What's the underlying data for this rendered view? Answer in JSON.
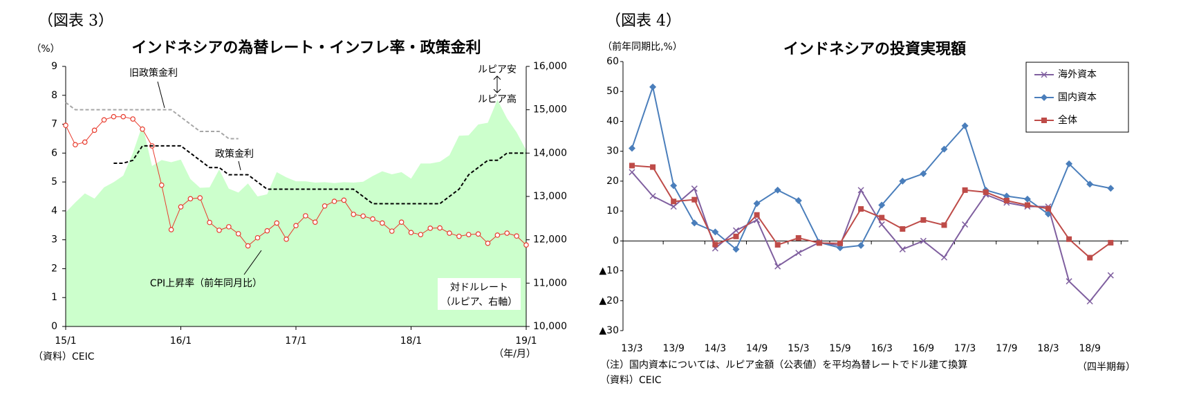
{
  "chart_data": [
    {
      "type": "line",
      "label": "（図表 3）",
      "title": "インドネシアの為替レート・インフレ率・政策金利",
      "y_label": "（%）",
      "x_label": "（年/月）",
      "source": "（資料）CEIC",
      "annotations": [
        "ルピア安",
        "ルピア高"
      ],
      "categories": [
        "15/1",
        null,
        null,
        null,
        null,
        null,
        null,
        null,
        null,
        null,
        null,
        null,
        "16/1",
        null,
        null,
        null,
        null,
        null,
        null,
        null,
        null,
        null,
        null,
        null,
        "17/1",
        null,
        null,
        null,
        null,
        null,
        null,
        null,
        null,
        null,
        null,
        null,
        "18/1",
        null,
        null,
        null,
        null,
        null,
        null,
        null,
        null,
        null,
        null,
        null,
        "19/1"
      ],
      "ylim": [
        0,
        9
      ],
      "yticks": [
        0,
        1,
        2,
        3,
        4,
        5,
        6,
        7,
        8,
        9
      ],
      "y2lim": [
        10000,
        16000
      ],
      "y2ticks": [
        {
          "value": 10000,
          "label": "10,000"
        },
        {
          "value": 11000,
          "label": "11,000"
        },
        {
          "value": 12000,
          "label": "12,000"
        },
        {
          "value": 13000,
          "label": "13,000"
        },
        {
          "value": 14000,
          "label": "14,000"
        },
        {
          "value": 15000,
          "label": "15,000"
        },
        {
          "value": 16000,
          "label": "16,000"
        }
      ],
      "series": [
        {
          "name": "CPI上昇率（前年同月比）",
          "color": "#e8392b",
          "marker": "circle",
          "values": [
            6.96,
            6.29,
            6.38,
            6.79,
            7.15,
            7.26,
            7.26,
            7.18,
            6.83,
            6.25,
            4.89,
            3.35,
            4.14,
            4.42,
            4.45,
            3.6,
            3.33,
            3.45,
            3.21,
            2.79,
            3.07,
            3.31,
            3.58,
            3.02,
            3.49,
            3.83,
            3.61,
            4.17,
            4.33,
            4.37,
            3.88,
            3.82,
            3.72,
            3.58,
            3.3,
            3.61,
            3.25,
            3.18,
            3.4,
            3.41,
            3.23,
            3.12,
            3.18,
            3.2,
            2.88,
            3.16,
            3.23,
            3.13,
            2.82
          ]
        },
        {
          "name": "旧政策金利",
          "color": "#a6a6a6",
          "dashed": true,
          "values": [
            7.75,
            7.5,
            7.5,
            7.5,
            7.5,
            7.5,
            7.5,
            7.5,
            7.5,
            7.5,
            7.5,
            7.5,
            7.25,
            7.0,
            6.75,
            6.75,
            6.75,
            6.5,
            6.5,
            null,
            null,
            null,
            null,
            null,
            null,
            null,
            null,
            null,
            null,
            null,
            null,
            null,
            null,
            null,
            null,
            null,
            null,
            null,
            null,
            null,
            null,
            null,
            null,
            null,
            null,
            null,
            null,
            null,
            null
          ]
        },
        {
          "name": "政策金利",
          "color": "#000000",
          "dashed": true,
          "values": [
            null,
            null,
            null,
            null,
            null,
            5.65,
            5.65,
            5.75,
            6.25,
            6.25,
            6.25,
            6.25,
            6.25,
            6.0,
            5.75,
            5.5,
            5.5,
            5.25,
            5.25,
            5.25,
            5.0,
            4.75,
            4.75,
            4.75,
            4.75,
            4.75,
            4.75,
            4.75,
            4.75,
            4.75,
            4.75,
            4.5,
            4.25,
            4.25,
            4.25,
            4.25,
            4.25,
            4.25,
            4.25,
            4.25,
            4.5,
            4.75,
            5.25,
            5.5,
            5.75,
            5.75,
            6.0,
            6.0,
            6.0
          ]
        },
        {
          "name": "対ドルレート",
          "sublabel": "（ルピア、右軸）",
          "color": "#ccffcc",
          "area": true,
          "axis": "y2",
          "values": [
            12630,
            12860,
            13070,
            12950,
            13210,
            13330,
            13480,
            14000,
            14650,
            13700,
            13840,
            13790,
            13850,
            13400,
            13200,
            13210,
            13620,
            13180,
            13090,
            13300,
            13000,
            13050,
            13560,
            13440,
            13350,
            13350,
            13320,
            13330,
            13310,
            13330,
            13320,
            13340,
            13470,
            13580,
            13510,
            13560,
            13410,
            13760,
            13760,
            13800,
            13950,
            14400,
            14410,
            14660,
            14700,
            15230,
            14800,
            14480,
            14070
          ]
        }
      ]
    },
    {
      "type": "line",
      "label": "（図表 4）",
      "title": "インドネシアの投資実現額",
      "y_label": "（前年同期比,%）",
      "x_label": "（四半期毎）",
      "note": "（注）国内資本については、ルピア金額（公表値）を平均為替レートでドル建て換算",
      "source": "（資料）CEIC",
      "legend": "upper right",
      "negative_label_color": "#ff0000",
      "categories": [
        "13/3",
        null,
        "13/9",
        null,
        "14/3",
        null,
        "14/9",
        null,
        "15/3",
        null,
        "15/9",
        null,
        "16/3",
        null,
        "16/9",
        null,
        "17/3",
        null,
        "17/9",
        null,
        "18/3",
        null,
        "18/9",
        null
      ],
      "ylim": [
        -30,
        60
      ],
      "yticks": [
        {
          "value": -30,
          "label": "▲30"
        },
        {
          "value": -20,
          "label": "▲20"
        },
        {
          "value": -10,
          "label": "▲10"
        },
        0,
        10,
        20,
        30,
        40,
        50,
        60
      ],
      "series": [
        {
          "name": "海外資本",
          "color": "#7f5f9f",
          "marker": "x",
          "values": [
            23,
            15,
            11.5,
            17.5,
            -2.5,
            3.5,
            7,
            -8.5,
            -4,
            -0.5,
            -1.5,
            17,
            5.5,
            -2.8,
            0,
            -5.5,
            5.5,
            15.5,
            12.8,
            11.5,
            11.5,
            -13.5,
            -20.2,
            -11.5
          ]
        },
        {
          "name": "国内資本",
          "color": "#4a7ebb",
          "marker": "diamond",
          "values": [
            31,
            51.5,
            18.5,
            6,
            3,
            -2.8,
            12.5,
            17,
            13.5,
            -0.5,
            -2.3,
            -1.5,
            12,
            20,
            22.5,
            30.7,
            38.5,
            17,
            15,
            14,
            9,
            25.8,
            19,
            17.6
          ]
        },
        {
          "name": "全体",
          "color": "#be4b48",
          "marker": "square",
          "values": [
            25.2,
            24.7,
            13.2,
            13.8,
            -1.2,
            1.5,
            8.7,
            -1.3,
            1,
            -0.7,
            -0.8,
            10.7,
            7.8,
            4,
            7,
            5.3,
            17,
            16.3,
            13.5,
            12,
            10.8,
            0.6,
            -5.6,
            -0.6
          ]
        }
      ]
    }
  ]
}
